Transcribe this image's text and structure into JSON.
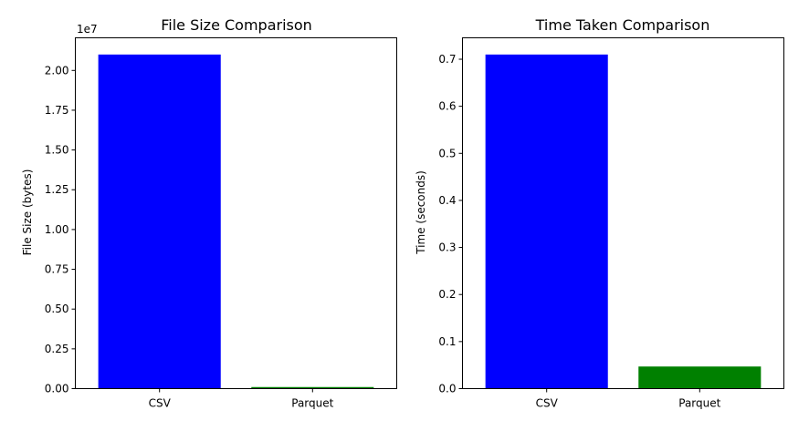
{
  "chart_data": [
    {
      "type": "bar",
      "title": "File Size Comparison",
      "xlabel": "",
      "ylabel": "File Size (bytes)",
      "categories": [
        "CSV",
        "Parquet"
      ],
      "values": [
        21000000,
        100000
      ],
      "colors": [
        "#0000ff",
        "#008000"
      ],
      "ylim": [
        0,
        22050000
      ],
      "yticks": [
        0,
        2500000,
        5000000,
        7500000,
        10000000,
        12500000,
        15000000,
        17500000,
        20000000
      ],
      "ytick_labels": [
        "0.00",
        "0.25",
        "0.50",
        "0.75",
        "1.00",
        "1.25",
        "1.50",
        "1.75",
        "2.00"
      ],
      "y_offset_label": "1e7",
      "grid": false,
      "legend": "none"
    },
    {
      "type": "bar",
      "title": "Time Taken Comparison",
      "xlabel": "",
      "ylabel": "Time (seconds)",
      "categories": [
        "CSV",
        "Parquet"
      ],
      "values": [
        0.71,
        0.047
      ],
      "colors": [
        "#0000ff",
        "#008000"
      ],
      "ylim": [
        0,
        0.7455
      ],
      "yticks": [
        0,
        0.1,
        0.2,
        0.3,
        0.4,
        0.5,
        0.6,
        0.7
      ],
      "ytick_labels": [
        "0.0",
        "0.1",
        "0.2",
        "0.3",
        "0.4",
        "0.5",
        "0.6",
        "0.7"
      ],
      "y_offset_label": "",
      "grid": false,
      "legend": "none"
    }
  ]
}
